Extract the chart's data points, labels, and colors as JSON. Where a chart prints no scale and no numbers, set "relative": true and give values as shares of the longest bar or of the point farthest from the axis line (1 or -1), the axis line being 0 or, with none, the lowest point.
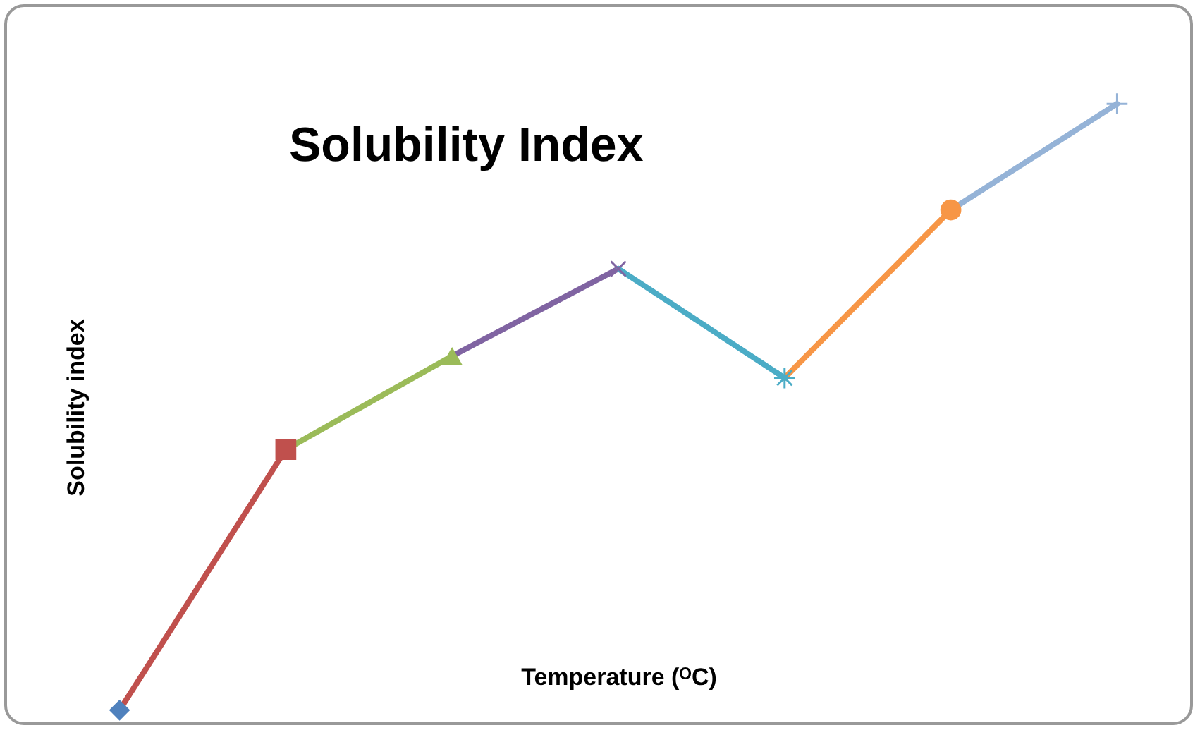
{
  "chart_data": {
    "type": "line",
    "title": "Solubility Index",
    "xlabel": "Temperature (ᴼC)",
    "ylabel": "Solubility index",
    "relative": true,
    "categories": [
      null,
      null,
      null,
      null,
      null,
      null,
      null
    ],
    "series": [
      {
        "color": "#4f81bd",
        "marker": "diamond",
        "values": [
          0,
          null,
          null,
          null,
          null,
          null,
          null
        ]
      },
      {
        "color": "#c0504d",
        "marker": "square",
        "values": [
          0,
          0.43,
          null,
          null,
          null,
          null,
          null
        ]
      },
      {
        "color": "#9bbb59",
        "marker": "triangle",
        "values": [
          null,
          0.43,
          0.584,
          null,
          null,
          null,
          null
        ]
      },
      {
        "color": "#8064a2",
        "marker": "cross",
        "values": [
          null,
          null,
          0.584,
          0.728,
          null,
          null,
          null
        ]
      },
      {
        "color": "#4bacc6",
        "marker": "star",
        "values": [
          null,
          null,
          null,
          0.728,
          0.548,
          null,
          null
        ]
      },
      {
        "color": "#f79646",
        "marker": "circle",
        "values": [
          null,
          null,
          null,
          null,
          0.548,
          0.825,
          null
        ]
      },
      {
        "color": "#95b3d7",
        "marker": "plus",
        "values": [
          null,
          null,
          null,
          null,
          null,
          0.825,
          1
        ]
      }
    ]
  }
}
